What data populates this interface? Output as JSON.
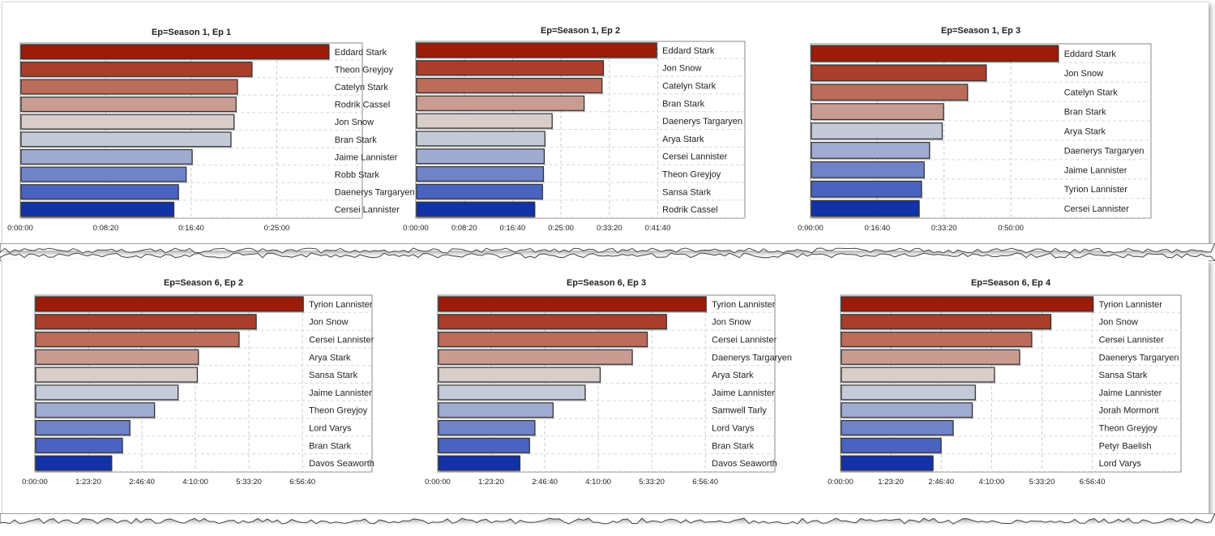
{
  "chart_data": [
    {
      "type": "bar",
      "title": "Ep=Season 1, Ep 1",
      "categories": [
        "Eddard Stark",
        "Theon Greyjoy",
        "Catelyn Stark",
        "Rodrik Cassel",
        "Jon Snow",
        "Bran Stark",
        "Jaime Lannister",
        "Robb Stark",
        "Daenerys Targaryen",
        "Cersei Lannister"
      ],
      "values": [
        1800,
        1350,
        1265,
        1257,
        1245,
        1227,
        1000,
        965,
        920,
        893
      ],
      "xticks": [
        "0:00:00",
        "0:08:20",
        "0:16:40",
        "0:25:00"
      ],
      "xtick_values": [
        0,
        500,
        1000,
        1500
      ],
      "xlim": [
        0,
        2000
      ]
    },
    {
      "type": "bar",
      "title": "Ep=Season 1, Ep 2",
      "categories": [
        "Eddard Stark",
        "Jon Snow",
        "Catelyn Stark",
        "Bran Stark",
        "Daenerys Targaryen",
        "Arya Stark",
        "Cersei Lannister",
        "Theon Greyjoy",
        "Sansa Stark",
        "Rodrik Cassel"
      ],
      "values": [
        2480,
        1930,
        1915,
        1730,
        1400,
        1325,
        1318,
        1310,
        1300,
        1220
      ],
      "xticks": [
        "0:00:00",
        "0:08:20",
        "0:16:40",
        "0:25:00",
        "0:33:20",
        "0:41:40"
      ],
      "xtick_values": [
        0,
        500,
        1000,
        1500,
        2000,
        2500
      ],
      "xlim": [
        0,
        3400
      ]
    },
    {
      "type": "bar",
      "title": "Ep=Season 1, Ep 3",
      "categories": [
        "Eddard Stark",
        "Jon Snow",
        "Catelyn Stark",
        "Bran Stark",
        "Arya Stark",
        "Daenerys Targaryen",
        "Jaime Lannister",
        "Tyrion Lannister",
        "Cersei Lannister"
      ],
      "values": [
        3700,
        2620,
        2340,
        1980,
        1960,
        1770,
        1690,
        1650,
        1615
      ],
      "xticks": [
        "0:00:00",
        "0:16:40",
        "0:33:20",
        "0:50:00"
      ],
      "xtick_values": [
        0,
        1000,
        2000,
        3000
      ],
      "xlim": [
        0,
        5100
      ]
    },
    {
      "type": "bar",
      "title": "Ep=Season 6, Ep 2",
      "categories": [
        "Tyrion Lannister",
        "Jon Snow",
        "Cersei Lannister",
        "Arya Stark",
        "Sansa Stark",
        "Jaime Lannister",
        "Theon Greyjoy",
        "Lord Varys",
        "Bran Stark",
        "Davos Seaworth"
      ],
      "values": [
        25000,
        20600,
        19000,
        15200,
        15100,
        13300,
        11100,
        8800,
        8100,
        7100
      ],
      "xticks": [
        "0:00:00",
        "1:23:20",
        "2:46:40",
        "4:10:00",
        "5:33:20",
        "6:56:40"
      ],
      "xtick_values": [
        0,
        5000,
        10000,
        15000,
        20000,
        25000
      ],
      "xlim": [
        0,
        31500
      ]
    },
    {
      "type": "bar",
      "title": "Ep=Season 6, Ep 3",
      "categories": [
        "Tyrion Lannister",
        "Jon Snow",
        "Cersei Lannister",
        "Daenerys Targaryen",
        "Arya Stark",
        "Jaime Lannister",
        "Samwell Tarly",
        "Lord Varys",
        "Bran Stark",
        "Davos Seaworth"
      ],
      "values": [
        25000,
        21300,
        19500,
        18100,
        15100,
        13700,
        10700,
        9000,
        8500,
        7600
      ],
      "xticks": [
        "0:00:00",
        "1:23:20",
        "2:46:40",
        "4:10:00",
        "5:33:20",
        "6:56:40"
      ],
      "xtick_values": [
        0,
        5000,
        10000,
        15000,
        20000,
        25000
      ],
      "xlim": [
        0,
        31500
      ]
    },
    {
      "type": "bar",
      "title": "Ep=Season 6, Ep 4",
      "categories": [
        "Tyrion Lannister",
        "Jon Snow",
        "Cersei Lannister",
        "Daenerys Targaryen",
        "Sansa Stark",
        "Jaime Lannister",
        "Jorah Mormont",
        "Theon Greyjoy",
        "Petyr Baelish",
        "Lord Varys"
      ],
      "values": [
        25000,
        20800,
        18900,
        17700,
        15200,
        13300,
        13000,
        11100,
        9900,
        9100
      ],
      "xticks": [
        "0:00:00",
        "1:23:20",
        "2:46:40",
        "4:10:00",
        "5:33:20",
        "6:56:40"
      ],
      "xtick_values": [
        0,
        5000,
        10000,
        15000,
        20000,
        25000
      ],
      "xlim": [
        0,
        33800
      ]
    }
  ],
  "colors": {
    "bar_scale": [
      "#9b1c08",
      "#a93e2b",
      "#bb6c5b",
      "#c99c92",
      "#d8cdc9",
      "#c4cad8",
      "#a0abd2",
      "#7082c8",
      "#4a63c0",
      "#1232a8"
    ],
    "grid": "#cccccc",
    "axis": "#555555"
  }
}
